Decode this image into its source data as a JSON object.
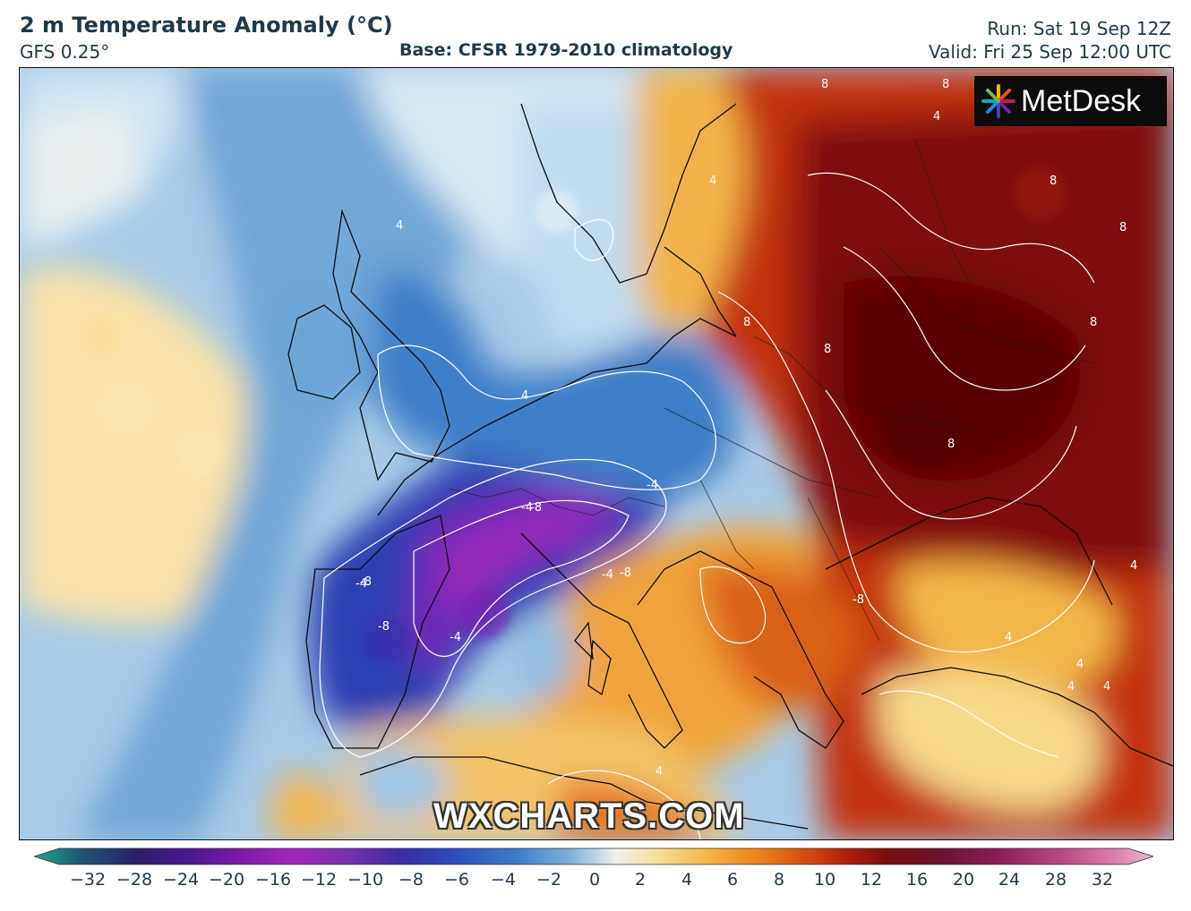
{
  "header": {
    "title": "2 m Temperature Anomaly (°C)",
    "model": "GFS 0.25°",
    "base": "Base: CFSR 1979-2010 climatology",
    "run": "Run: Sat 19 Sep 12Z",
    "valid": "Valid: Fri 25 Sep 12:00 UTC"
  },
  "brand": {
    "name": "MetDesk",
    "icon": "metdesk-logo-icon"
  },
  "watermark": "WXCHARTS.COM",
  "colorbar": {
    "ticks": [
      "−32",
      "−28",
      "−24",
      "−20",
      "−16",
      "−12",
      "−10",
      "−8",
      "−6",
      "−4",
      "−2",
      "0",
      "2",
      "4",
      "6",
      "8",
      "10",
      "12",
      "16",
      "20",
      "24",
      "28",
      "32"
    ],
    "colors": [
      "#1fa889",
      "#1f5a78",
      "#2a1e6a",
      "#4b1790",
      "#7a1aa8",
      "#9e28b8",
      "#7a2fb0",
      "#3a2ea6",
      "#2c52c0",
      "#3c7cc8",
      "#7fb1dc",
      "#dfe9ef",
      "#f7dc92",
      "#f3b64a",
      "#ee8a1c",
      "#d85a12",
      "#b8260e",
      "#7c0d0a",
      "#6a1230",
      "#8a1f55",
      "#b2437a",
      "#d877a6",
      "#f0b3cf"
    ]
  },
  "contour_labels": [
    "4",
    "4",
    "4",
    "4",
    "4",
    "4",
    "4",
    "4",
    "4",
    "4",
    "8",
    "8",
    "8",
    "8",
    "8",
    "8",
    "8",
    "8",
    "-4",
    "-4",
    "-4",
    "-4",
    "-8",
    "-8",
    "-8",
    "-8",
    "-8",
    "-4"
  ]
}
